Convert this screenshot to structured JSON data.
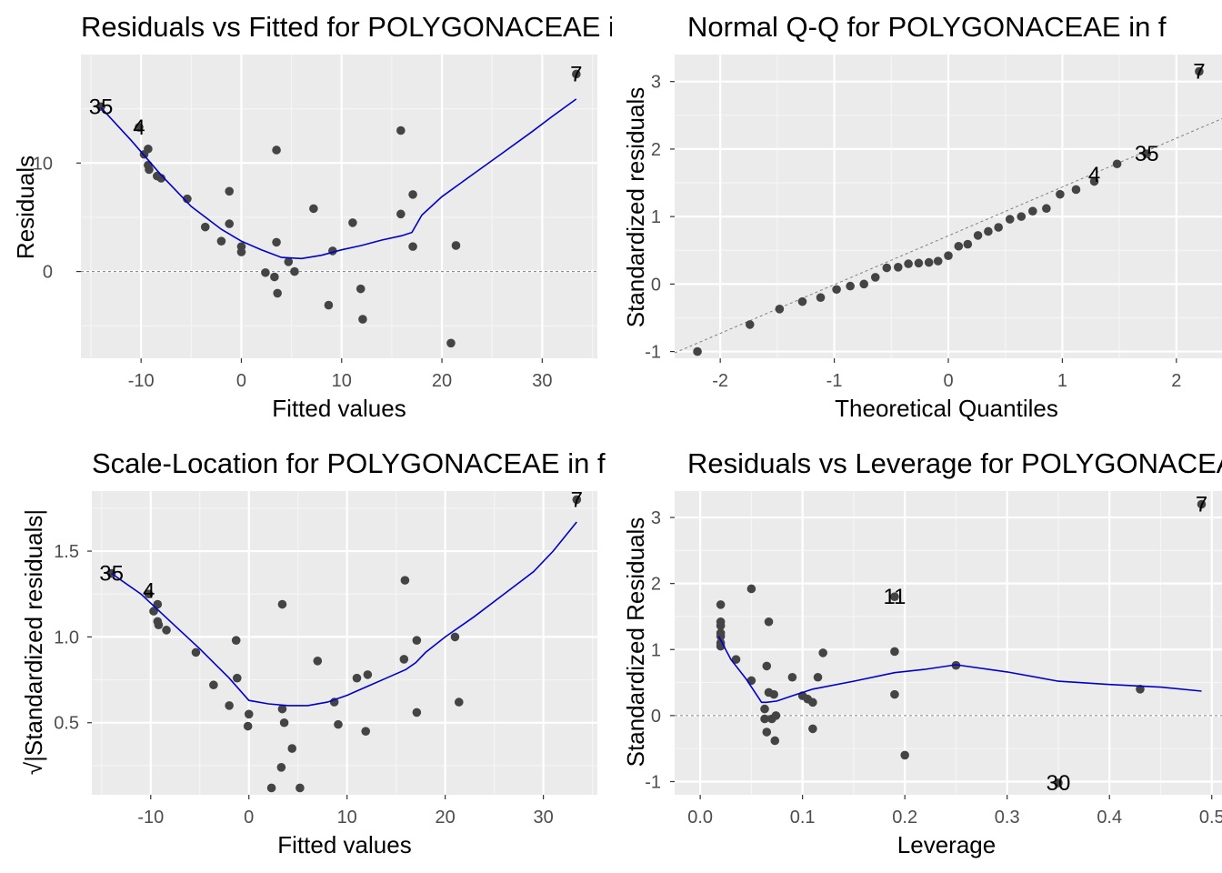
{
  "chart_data": [
    {
      "id": "residuals-vs-fitted",
      "type": "scatter",
      "title": "Residuals vs Fitted for POLYGONACEAE in f",
      "xlabel": "Fitted values",
      "ylabel": "Residuals",
      "xlim": [
        -16,
        35.5
      ],
      "ylim": [
        -8,
        20
      ],
      "xticks": [
        -10,
        0,
        10,
        20,
        30
      ],
      "yticks": [
        0,
        10
      ],
      "grid": true,
      "hline": 0,
      "points": [
        [
          -14,
          15.2
        ],
        [
          -10.2,
          13.3
        ],
        [
          -9.7,
          10.8
        ],
        [
          -9.3,
          11.3
        ],
        [
          -9.3,
          9.8
        ],
        [
          -9.2,
          9.4
        ],
        [
          -8.4,
          8.8
        ],
        [
          -8.0,
          8.6
        ],
        [
          -5.4,
          6.7
        ],
        [
          -3.6,
          4.1
        ],
        [
          -2.0,
          2.8
        ],
        [
          -1.2,
          7.4
        ],
        [
          -1.2,
          4.4
        ],
        [
          0,
          2.3
        ],
        [
          0,
          1.8
        ],
        [
          2.4,
          -0.1
        ],
        [
          3.3,
          -0.5
        ],
        [
          3.5,
          11.2
        ],
        [
          3.5,
          2.7
        ],
        [
          3.6,
          -2.0
        ],
        [
          4.7,
          0.9
        ],
        [
          5.3,
          0.0
        ],
        [
          7.2,
          5.8
        ],
        [
          8.7,
          -3.1
        ],
        [
          9.1,
          1.9
        ],
        [
          11.1,
          4.5
        ],
        [
          11.9,
          -1.6
        ],
        [
          12.1,
          -4.4
        ],
        [
          15.9,
          13.0
        ],
        [
          15.9,
          5.3
        ],
        [
          17.1,
          7.1
        ],
        [
          17.1,
          2.3
        ],
        [
          20.9,
          -6.6
        ],
        [
          21.4,
          2.4
        ],
        [
          33.4,
          18.2
        ]
      ],
      "smooth": [
        [
          -14,
          15.1
        ],
        [
          -11,
          12.1
        ],
        [
          -8,
          8.9
        ],
        [
          -5,
          6.0
        ],
        [
          -2,
          3.9
        ],
        [
          0,
          2.8
        ],
        [
          2,
          2.0
        ],
        [
          4,
          1.3
        ],
        [
          6,
          1.2
        ],
        [
          8,
          1.5
        ],
        [
          10,
          2.0
        ],
        [
          12,
          2.4
        ],
        [
          14,
          2.9
        ],
        [
          16,
          3.3
        ],
        [
          17,
          3.6
        ],
        [
          18,
          5.2
        ],
        [
          20,
          6.9
        ],
        [
          23,
          8.9
        ],
        [
          26,
          10.9
        ],
        [
          29,
          12.9
        ],
        [
          31,
          14.3
        ],
        [
          33.4,
          15.9
        ]
      ],
      "labels": [
        {
          "text": "35",
          "x": -14,
          "y": 15.2
        },
        {
          "text": "4",
          "x": -10.2,
          "y": 13.3
        },
        {
          "text": "7",
          "x": 33.4,
          "y": 18.2
        }
      ]
    },
    {
      "id": "normal-qq",
      "type": "scatter",
      "title": "Normal Q-Q for POLYGONACEAE in f",
      "xlabel": "Theoretical Quantiles",
      "ylabel": "Standardized residuals",
      "xlim": [
        -2.4,
        2.4
      ],
      "ylim": [
        -1.1,
        3.4
      ],
      "xticks": [
        -2,
        -1,
        0,
        1,
        2
      ],
      "yticks": [
        -1,
        0,
        1,
        2,
        3
      ],
      "grid": true,
      "refline": [
        [
          -2.4,
          -1.02
        ],
        [
          2.4,
          2.45
        ]
      ],
      "points": [
        [
          -2.2,
          -1.0
        ],
        [
          -1.74,
          -0.6
        ],
        [
          -1.48,
          -0.37
        ],
        [
          -1.28,
          -0.26
        ],
        [
          -1.12,
          -0.2
        ],
        [
          -0.98,
          -0.08
        ],
        [
          -0.86,
          -0.03
        ],
        [
          -0.74,
          0.0
        ],
        [
          -0.64,
          0.1
        ],
        [
          -0.54,
          0.24
        ],
        [
          -0.44,
          0.25
        ],
        [
          -0.35,
          0.3
        ],
        [
          -0.26,
          0.31
        ],
        [
          -0.17,
          0.32
        ],
        [
          -0.09,
          0.34
        ],
        [
          0.0,
          0.42
        ],
        [
          0.09,
          0.56
        ],
        [
          0.17,
          0.59
        ],
        [
          0.26,
          0.72
        ],
        [
          0.35,
          0.78
        ],
        [
          0.44,
          0.84
        ],
        [
          0.54,
          0.96
        ],
        [
          0.64,
          1.0
        ],
        [
          0.74,
          1.08
        ],
        [
          0.86,
          1.12
        ],
        [
          0.98,
          1.33
        ],
        [
          1.12,
          1.4
        ],
        [
          1.28,
          1.52
        ],
        [
          1.48,
          1.78
        ],
        [
          1.74,
          1.93
        ],
        [
          2.2,
          3.15
        ]
      ],
      "labels": [
        {
          "text": "4",
          "x": 1.28,
          "y": 1.62
        },
        {
          "text": "35",
          "x": 1.74,
          "y": 1.93
        },
        {
          "text": "7",
          "x": 2.2,
          "y": 3.15
        }
      ]
    },
    {
      "id": "scale-location",
      "type": "scatter",
      "title": "Scale-Location for POLYGONACEAE in f",
      "xlabel": "Fitted values",
      "ylabel": "√|Standardized residuals|",
      "xlim": [
        -16,
        35.5
      ],
      "ylim": [
        0.08,
        1.85
      ],
      "xticks": [
        -10,
        0,
        10,
        20,
        30
      ],
      "yticks": [
        0.5,
        1.0,
        1.5
      ],
      "grid": true,
      "points": [
        [
          -14,
          1.37
        ],
        [
          -10.2,
          1.25
        ],
        [
          -9.7,
          1.15
        ],
        [
          -9.3,
          1.19
        ],
        [
          -9.3,
          1.09
        ],
        [
          -9.2,
          1.07
        ],
        [
          -8.4,
          1.04
        ],
        [
          -5.4,
          0.91
        ],
        [
          -3.6,
          0.72
        ],
        [
          -2.0,
          0.6
        ],
        [
          -1.3,
          0.98
        ],
        [
          -1.2,
          0.76
        ],
        [
          0,
          0.55
        ],
        [
          -0.1,
          0.48
        ],
        [
          2.3,
          0.12
        ],
        [
          3.3,
          0.24
        ],
        [
          3.4,
          1.19
        ],
        [
          3.4,
          0.58
        ],
        [
          3.6,
          0.5
        ],
        [
          4.4,
          0.35
        ],
        [
          5.2,
          0.12
        ],
        [
          7.0,
          0.86
        ],
        [
          8.7,
          0.62
        ],
        [
          9.1,
          0.49
        ],
        [
          11.0,
          0.76
        ],
        [
          11.9,
          0.45
        ],
        [
          12.1,
          0.78
        ],
        [
          15.9,
          1.33
        ],
        [
          15.8,
          0.87
        ],
        [
          17.1,
          0.98
        ],
        [
          17.1,
          0.56
        ],
        [
          21.0,
          1.0
        ],
        [
          21.4,
          0.62
        ],
        [
          33.4,
          1.8
        ]
      ],
      "smooth": [
        [
          -14,
          1.37
        ],
        [
          -11,
          1.25
        ],
        [
          -8,
          1.09
        ],
        [
          -5,
          0.93
        ],
        [
          -2,
          0.76
        ],
        [
          0,
          0.63
        ],
        [
          2,
          0.61
        ],
        [
          4,
          0.6
        ],
        [
          6,
          0.6
        ],
        [
          8,
          0.62
        ],
        [
          10,
          0.66
        ],
        [
          12,
          0.71
        ],
        [
          14,
          0.76
        ],
        [
          16,
          0.81
        ],
        [
          17,
          0.85
        ],
        [
          18,
          0.91
        ],
        [
          20,
          1.0
        ],
        [
          23,
          1.12
        ],
        [
          26,
          1.25
        ],
        [
          29,
          1.38
        ],
        [
          31,
          1.5
        ],
        [
          33.4,
          1.67
        ]
      ],
      "labels": [
        {
          "text": "35",
          "x": -14,
          "y": 1.37
        },
        {
          "text": "4",
          "x": -10.2,
          "y": 1.27
        },
        {
          "text": "7",
          "x": 33.4,
          "y": 1.8
        }
      ]
    },
    {
      "id": "residuals-vs-leverage",
      "type": "scatter",
      "title": "Residuals vs Leverage for POLYGONACEAE in f",
      "xlabel": "Leverage",
      "ylabel": "Standardized Residuals",
      "xlim": [
        -0.025,
        0.51
      ],
      "ylim": [
        -1.2,
        3.4
      ],
      "xticks": [
        0.0,
        0.1,
        0.2,
        0.3,
        0.4,
        0.5
      ],
      "xtickLabels": [
        "0.0",
        "0.1",
        "0.2",
        "0.3",
        "0.4",
        "0.5"
      ],
      "yticks": [
        -1,
        0,
        1,
        2,
        3
      ],
      "grid": true,
      "hline": 0,
      "points": [
        [
          0.02,
          1.68
        ],
        [
          0.02,
          1.42
        ],
        [
          0.02,
          1.36
        ],
        [
          0.02,
          1.25
        ],
        [
          0.02,
          1.2
        ],
        [
          0.02,
          1.1
        ],
        [
          0.02,
          1.05
        ],
        [
          0.035,
          0.85
        ],
        [
          0.05,
          1.92
        ],
        [
          0.05,
          0.53
        ],
        [
          0.063,
          0.1
        ],
        [
          0.063,
          -0.05
        ],
        [
          0.065,
          0.75
        ],
        [
          0.065,
          -0.25
        ],
        [
          0.067,
          1.42
        ],
        [
          0.067,
          0.35
        ],
        [
          0.07,
          -0.05
        ],
        [
          0.072,
          0.32
        ],
        [
          0.073,
          -0.38
        ],
        [
          0.074,
          0.0
        ],
        [
          0.09,
          0.58
        ],
        [
          0.1,
          0.3
        ],
        [
          0.105,
          0.25
        ],
        [
          0.11,
          0.2
        ],
        [
          0.11,
          -0.2
        ],
        [
          0.115,
          0.58
        ],
        [
          0.12,
          0.95
        ],
        [
          0.19,
          1.8
        ],
        [
          0.19,
          0.97
        ],
        [
          0.19,
          0.32
        ],
        [
          0.2,
          -0.6
        ],
        [
          0.25,
          0.76
        ],
        [
          0.35,
          -1.02
        ],
        [
          0.43,
          0.4
        ],
        [
          0.49,
          3.2
        ]
      ],
      "smooth": [
        [
          0.018,
          1.2
        ],
        [
          0.03,
          0.85
        ],
        [
          0.045,
          0.55
        ],
        [
          0.06,
          0.2
        ],
        [
          0.065,
          0.2
        ],
        [
          0.075,
          0.22
        ],
        [
          0.09,
          0.3
        ],
        [
          0.11,
          0.4
        ],
        [
          0.15,
          0.52
        ],
        [
          0.19,
          0.65
        ],
        [
          0.22,
          0.7
        ],
        [
          0.25,
          0.77
        ],
        [
          0.3,
          0.66
        ],
        [
          0.35,
          0.52
        ],
        [
          0.4,
          0.47
        ],
        [
          0.45,
          0.43
        ],
        [
          0.49,
          0.37
        ]
      ],
      "labels": [
        {
          "text": "11",
          "x": 0.19,
          "y": 1.8
        },
        {
          "text": "30",
          "x": 0.35,
          "y": -1.02
        },
        {
          "text": "7",
          "x": 0.49,
          "y": 3.2
        }
      ]
    }
  ],
  "colors": {
    "panel": "#ebebeb",
    "gridMajor": "#ffffff",
    "gridMinor": "#f5f5f5",
    "point": "#444444",
    "smooth": "#0000cc",
    "refline": "#7f7f7f"
  }
}
